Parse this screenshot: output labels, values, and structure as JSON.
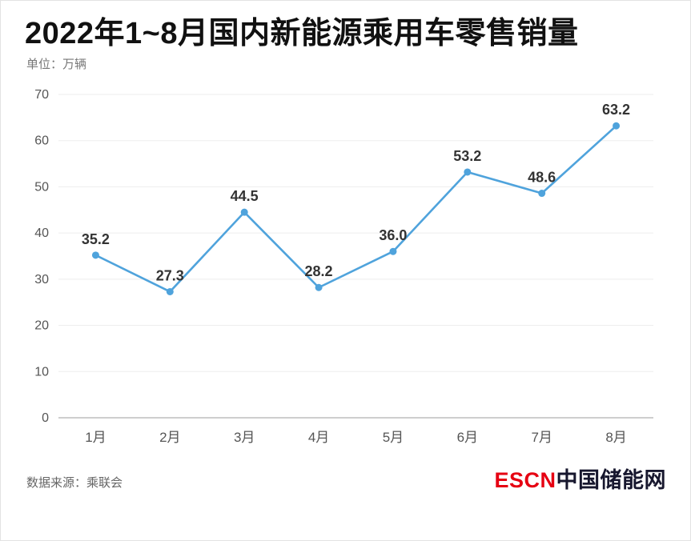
{
  "chart_data": {
    "type": "line",
    "title": "2022年1~8月国内新能源乘用车零售销量",
    "unit_label": "单位：万辆",
    "categories": [
      "1月",
      "2月",
      "3月",
      "4月",
      "5月",
      "6月",
      "7月",
      "8月"
    ],
    "values": [
      35.2,
      27.3,
      44.5,
      28.2,
      36.0,
      53.2,
      48.6,
      63.2
    ],
    "ylim": [
      0,
      70
    ],
    "ytick_step": 10,
    "grid": true,
    "legend": "none",
    "line_color": "#4FA3DC",
    "point_color": "#4FA3DC",
    "data_label_color": "#333333",
    "axis_label_color": "#555555",
    "gridline_color": "#ededed",
    "baseline_color": "#bdbdbd"
  },
  "footer": {
    "source": "数据来源：乘联会",
    "logo_primary": "ESCN",
    "logo_secondary": "中国储能网"
  }
}
